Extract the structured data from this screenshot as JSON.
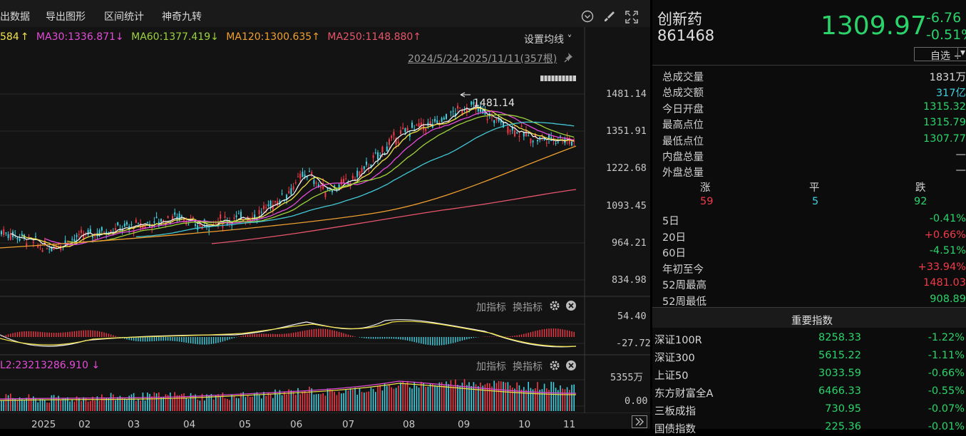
{
  "toolbar": {
    "items": [
      "出数据",
      "导出图形",
      "区间统计",
      "神奇九转"
    ],
    "icons": [
      "chevron-down-circle-icon",
      "brush-icon",
      "fullscreen-icon"
    ]
  },
  "ma": {
    "ma20_tail": "584",
    "ma30": "MA30:1336.871",
    "ma60": "MA60:1377.419",
    "ma120": "MA120:1300.635",
    "ma250": "MA250:1148.880",
    "arrows": [
      "↑",
      "↓",
      "↓",
      "↑",
      "↑"
    ],
    "colors": [
      "#e44cd8",
      "#9ed23c",
      "#42c9d6",
      "#f0a030",
      "#e8556c"
    ],
    "settings_label": "设置均线"
  },
  "range_label": "2024/5/24-2025/11/11(357根)",
  "price_axis": [
    "1481.14",
    "1351.91",
    "1222.68",
    "1093.45",
    "964.21",
    "834.98"
  ],
  "high_marker": "1481.14",
  "macd": {
    "add_label": "加指标",
    "swap_label": "换指标",
    "axis": [
      "54.40",
      "-27.72"
    ]
  },
  "volume": {
    "header": "L2:23213286.910",
    "header_arrow": "↓",
    "add_label": "加指标",
    "swap_label": "换指标",
    "axis": [
      "5355万",
      "0.00"
    ]
  },
  "x_axis": [
    "2025",
    "02",
    "03",
    "04",
    "05",
    "06",
    "07",
    "08",
    "09",
    "10",
    "11"
  ],
  "quote": {
    "name": "创新药",
    "code": "861468",
    "price": "1309.97",
    "change": "-6.76",
    "change_pct": "-0.51%",
    "watchlist_label": "自选 +"
  },
  "stats": [
    {
      "label": "总成交量",
      "value": "1831万",
      "color": "#d8d8d8"
    },
    {
      "label": "总成交额",
      "value": "317亿",
      "color": "#3fd0e0"
    },
    {
      "label": "今日开盘",
      "value": "1315.32",
      "color": "#2bd46b"
    },
    {
      "label": "最高点位",
      "value": "1315.79",
      "color": "#2bd46b"
    },
    {
      "label": "最低点位",
      "value": "1307.77",
      "color": "#2bd46b"
    },
    {
      "label": "内盘总量",
      "value": "—",
      "color": "#d8d8d8"
    },
    {
      "label": "外盘总量",
      "value": "—",
      "color": "#d8d8d8"
    }
  ],
  "breadth": {
    "up_label": "涨",
    "flat_label": "平",
    "down_label": "跌",
    "up": "59",
    "flat": "5",
    "down": "92"
  },
  "periods": [
    {
      "label": "5日",
      "value": "-0.41%",
      "color": "#2bd46b"
    },
    {
      "label": "20日",
      "value": "+0.66%",
      "color": "#f23a48"
    },
    {
      "label": "60日",
      "value": "-4.51%",
      "color": "#2bd46b"
    },
    {
      "label": "年初至今",
      "value": "+33.94%",
      "color": "#f23a48"
    },
    {
      "label": "52周最高",
      "value": "1481.03",
      "color": "#f23a48"
    },
    {
      "label": "52周最低",
      "value": "908.89",
      "color": "#2bd46b"
    }
  ],
  "indices_title": "重要指数",
  "indices": [
    {
      "name": "深证100R",
      "price": "8258.33",
      "pct": "-1.22%"
    },
    {
      "name": "深证300",
      "price": "5615.22",
      "pct": "-1.11%"
    },
    {
      "name": "上证50",
      "price": "3033.59",
      "pct": "-0.66%"
    },
    {
      "name": "东方财富全A",
      "price": "6466.33",
      "pct": "-0.55%"
    },
    {
      "name": "三板成指",
      "price": "730.95",
      "pct": "-0.07%"
    },
    {
      "name": "国债指数",
      "price": "225.36",
      "pct": "-0.01%"
    }
  ]
}
